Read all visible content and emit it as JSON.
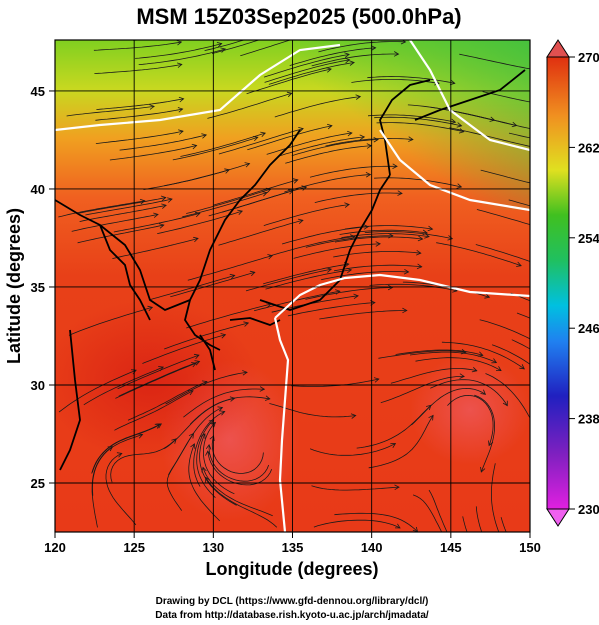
{
  "title": "MSM 15Z03Sep2025 (500.0hPa)",
  "x_axis": {
    "label": "Longitude (degrees)",
    "range": [
      120,
      150
    ],
    "ticks": [
      "120",
      "125",
      "130",
      "135",
      "140",
      "145",
      "150"
    ]
  },
  "y_axis": {
    "label": "Latitude  (degrees)",
    "range": [
      22.5,
      47.6
    ],
    "ticks": [
      "25",
      "30",
      "35",
      "40",
      "45"
    ]
  },
  "colorbar": {
    "range": [
      230,
      270
    ],
    "ticks": [
      "230",
      "238",
      "246",
      "254",
      "262",
      "270"
    ],
    "colors": [
      "#e020e0",
      "#2020c0",
      "#00b0f0",
      "#20c040",
      "#e0e020",
      "#e03010"
    ]
  },
  "map": {
    "field": "temperature",
    "overlay": "streamlines",
    "land_outline_color": "#000000",
    "contour_color": "#ffffff"
  },
  "credits": {
    "line1": "Drawing by DCL (https://www.gfd-dennou.org/library/dcl/)",
    "line2": "Data from http://database.rish.kyoto-u.ac.jp/arch/jmadata/"
  }
}
